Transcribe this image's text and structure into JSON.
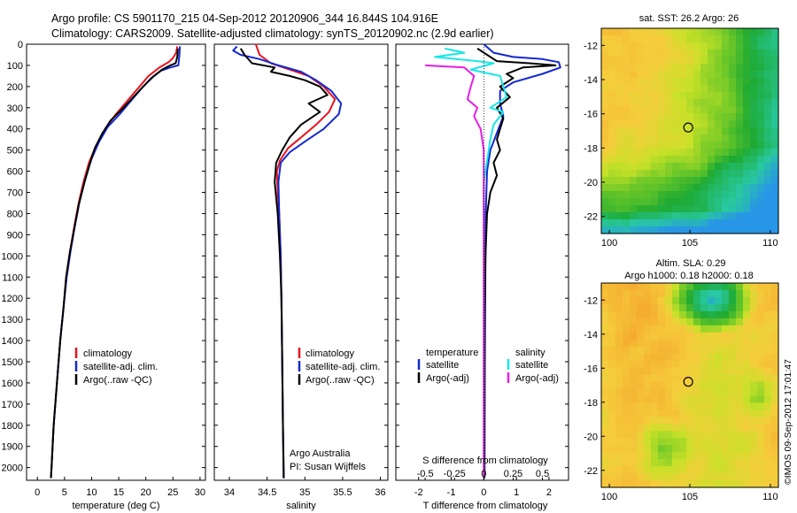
{
  "header": {
    "line1": "Argo profile: CS 5901170_215 04-Sep-2012 20120906_344 16.844S 104.916E",
    "line2": "Climatology: CARS2009. Satellite-adjusted climatology: synTS_20120902.nc (2.9d earlier)"
  },
  "colors": {
    "red": "#e8141e",
    "blue": "#1428d2",
    "black": "#000000",
    "cyan": "#19e6e6",
    "magenta": "#e61ee6"
  },
  "chart_data": [
    {
      "type": "line",
      "panel": "temperature",
      "xlabel": "temperature (deg C)",
      "ylabel": "",
      "xlim": [
        -2,
        31
      ],
      "ylim": [
        2060,
        0
      ],
      "xticks": [
        0,
        5,
        10,
        15,
        20,
        25,
        30
      ],
      "yticks": [
        0,
        100,
        200,
        300,
        400,
        500,
        600,
        700,
        800,
        900,
        1000,
        1100,
        1200,
        1300,
        1400,
        1500,
        1600,
        1700,
        1800,
        1900,
        2000
      ],
      "legend": [
        "climatology",
        "satellite-adj. clim.",
        "Argo(..raw -QC)"
      ],
      "series": [
        {
          "name": "climatology",
          "color": "red",
          "points": [
            [
              25.8,
              10
            ],
            [
              25.6,
              40
            ],
            [
              25.0,
              65
            ],
            [
              24.2,
              85
            ],
            [
              22.5,
              110
            ],
            [
              20.5,
              150
            ],
            [
              18.5,
              210
            ],
            [
              16.5,
              270
            ],
            [
              14.5,
              330
            ],
            [
              12.5,
              400
            ],
            [
              10.8,
              480
            ],
            [
              9.5,
              560
            ],
            [
              8.5,
              650
            ],
            [
              7.6,
              750
            ],
            [
              6.8,
              860
            ],
            [
              6.0,
              980
            ],
            [
              5.3,
              1100
            ],
            [
              4.8,
              1250
            ],
            [
              4.2,
              1400
            ],
            [
              3.6,
              1600
            ],
            [
              3.0,
              1800
            ],
            [
              2.6,
              2000
            ],
            [
              2.5,
              2050
            ]
          ]
        },
        {
          "name": "satellite-adj. clim.",
          "color": "blue",
          "points": [
            [
              26.3,
              10
            ],
            [
              26.2,
              50
            ],
            [
              26.0,
              100
            ],
            [
              24.5,
              110
            ],
            [
              22.8,
              125
            ],
            [
              21.0,
              160
            ],
            [
              19.0,
              215
            ],
            [
              17.0,
              275
            ],
            [
              15.2,
              330
            ],
            [
              13.0,
              390
            ],
            [
              11.4,
              460
            ],
            [
              10.0,
              540
            ],
            [
              8.8,
              640
            ],
            [
              7.8,
              740
            ],
            [
              6.9,
              860
            ],
            [
              6.1,
              980
            ],
            [
              5.4,
              1100
            ],
            [
              4.8,
              1250
            ],
            [
              4.2,
              1400
            ],
            [
              3.6,
              1600
            ],
            [
              3.0,
              1800
            ],
            [
              2.6,
              2000
            ],
            [
              2.5,
              2050
            ]
          ]
        },
        {
          "name": "Argo(..raw -QC)",
          "color": "black",
          "points": [
            [
              25.9,
              20
            ],
            [
              25.8,
              60
            ],
            [
              25.5,
              90
            ],
            [
              24.5,
              100
            ],
            [
              23.0,
              120
            ],
            [
              21.5,
              150
            ],
            [
              19.5,
              200
            ],
            [
              17.5,
              255
            ],
            [
              15.5,
              310
            ],
            [
              13.5,
              360
            ],
            [
              12.0,
              420
            ],
            [
              10.6,
              490
            ],
            [
              9.6,
              570
            ],
            [
              8.6,
              660
            ],
            [
              7.6,
              760
            ],
            [
              6.8,
              870
            ],
            [
              6.0,
              980
            ],
            [
              5.3,
              1100
            ],
            [
              4.8,
              1250
            ],
            [
              4.2,
              1400
            ],
            [
              3.6,
              1600
            ],
            [
              3.0,
              1800
            ],
            [
              2.6,
              2000
            ],
            [
              2.5,
              2050
            ]
          ]
        }
      ]
    },
    {
      "type": "line",
      "panel": "salinity",
      "xlabel": "salinity",
      "xlim": [
        33.8,
        36.1
      ],
      "ylim": [
        2060,
        0
      ],
      "xticks": [
        34,
        34.5,
        35,
        35.5,
        36
      ],
      "legend": [
        "climatology",
        "satellite-adj. clim.",
        "Argo(..raw -QC)"
      ],
      "annotation": [
        "Argo Australia",
        "PI: Susan Wijffels"
      ],
      "series": [
        {
          "name": "climatology",
          "color": "red",
          "points": [
            [
              34.35,
              0
            ],
            [
              34.4,
              50
            ],
            [
              34.55,
              90
            ],
            [
              34.8,
              120
            ],
            [
              35.05,
              150
            ],
            [
              35.25,
              200
            ],
            [
              35.4,
              260
            ],
            [
              35.32,
              320
            ],
            [
              35.15,
              380
            ],
            [
              34.95,
              440
            ],
            [
              34.78,
              490
            ],
            [
              34.67,
              550
            ],
            [
              34.63,
              600
            ],
            [
              34.64,
              700
            ],
            [
              34.66,
              800
            ],
            [
              34.68,
              1000
            ],
            [
              34.69,
              1200
            ],
            [
              34.7,
              1500
            ],
            [
              34.71,
              1800
            ],
            [
              34.72,
              2050
            ]
          ]
        },
        {
          "name": "satellite-adj. clim.",
          "color": "blue",
          "points": [
            [
              34.1,
              10
            ],
            [
              34.05,
              30
            ],
            [
              34.15,
              50
            ],
            [
              34.4,
              70
            ],
            [
              34.65,
              100
            ],
            [
              34.95,
              130
            ],
            [
              35.15,
              170
            ],
            [
              35.35,
              220
            ],
            [
              35.48,
              280
            ],
            [
              35.45,
              330
            ],
            [
              35.25,
              400
            ],
            [
              35.0,
              460
            ],
            [
              34.8,
              510
            ],
            [
              34.68,
              560
            ],
            [
              34.65,
              650
            ],
            [
              34.66,
              800
            ],
            [
              34.68,
              1000
            ],
            [
              34.69,
              1200
            ],
            [
              34.7,
              1500
            ],
            [
              34.71,
              1800
            ],
            [
              34.72,
              2050
            ]
          ]
        },
        {
          "name": "Argo(..raw -QC)",
          "color": "black",
          "points": [
            [
              34.15,
              20
            ],
            [
              34.2,
              50
            ],
            [
              34.3,
              90
            ],
            [
              34.6,
              110
            ],
            [
              34.55,
              130
            ],
            [
              34.8,
              150
            ],
            [
              35.0,
              170
            ],
            [
              35.2,
              200
            ],
            [
              35.3,
              240
            ],
            [
              35.05,
              280
            ],
            [
              35.2,
              320
            ],
            [
              34.95,
              380
            ],
            [
              34.8,
              440
            ],
            [
              34.7,
              500
            ],
            [
              34.62,
              560
            ],
            [
              34.6,
              650
            ],
            [
              34.64,
              800
            ],
            [
              34.67,
              1000
            ],
            [
              34.69,
              1200
            ],
            [
              34.7,
              1500
            ],
            [
              34.71,
              1800
            ],
            [
              34.72,
              2050
            ]
          ]
        }
      ]
    },
    {
      "type": "line",
      "panel": "differences",
      "xlabel": "T difference from climatology",
      "x2label": "S difference from climatology",
      "xlim": [
        -2.7,
        2.6
      ],
      "ylim": [
        2060,
        0
      ],
      "xticks": [
        -2,
        -1,
        0,
        1,
        2
      ],
      "s_ticks": [
        [
          -1.8,
          "-0.5"
        ],
        [
          -0.9,
          "-0.25"
        ],
        [
          0,
          "0"
        ],
        [
          0.9,
          "0.25"
        ],
        [
          1.8,
          "0.5"
        ]
      ],
      "legend_t_title": "temperature",
      "legend_s_title": "salinity",
      "legend_t": [
        "satellite",
        "Argo(-adj)"
      ],
      "legend_s": [
        "satellite",
        "Argo(-adj)"
      ],
      "series": [
        {
          "name": "T satellite",
          "color": "blue",
          "points": [
            [
              0.0,
              0
            ],
            [
              0.3,
              40
            ],
            [
              0.9,
              60
            ],
            [
              1.8,
              70
            ],
            [
              2.3,
              85
            ],
            [
              2.35,
              110
            ],
            [
              1.8,
              140
            ],
            [
              0.9,
              180
            ],
            [
              0.5,
              220
            ],
            [
              0.5,
              280
            ],
            [
              0.6,
              340
            ],
            [
              0.4,
              420
            ],
            [
              0.2,
              500
            ],
            [
              0.1,
              600
            ],
            [
              0.06,
              800
            ],
            [
              0.05,
              1000
            ],
            [
              0.04,
              1300
            ],
            [
              0.03,
              1600
            ],
            [
              0.02,
              2050
            ]
          ]
        },
        {
          "name": "T Argo(-adj)",
          "color": "black",
          "points": [
            [
              -0.2,
              20
            ],
            [
              0.4,
              80
            ],
            [
              1.4,
              90
            ],
            [
              2.2,
              100
            ],
            [
              1.2,
              110
            ],
            [
              0.7,
              140
            ],
            [
              0.9,
              160
            ],
            [
              0.5,
              200
            ],
            [
              0.8,
              250
            ],
            [
              0.4,
              300
            ],
            [
              0.6,
              350
            ],
            [
              0.5,
              400
            ],
            [
              0.4,
              450
            ],
            [
              0.5,
              500
            ],
            [
              0.3,
              560
            ],
            [
              0.4,
              620
            ],
            [
              0.2,
              700
            ],
            [
              0.1,
              800
            ],
            [
              0.05,
              1000
            ],
            [
              0.03,
              1300
            ],
            [
              0.02,
              2050
            ]
          ]
        },
        {
          "name": "S satellite",
          "color": "cyan",
          "points": [
            [
              -1.2,
              20
            ],
            [
              -0.6,
              40
            ],
            [
              -1.5,
              60
            ],
            [
              -0.2,
              80
            ],
            [
              0.3,
              90
            ],
            [
              -0.4,
              120
            ],
            [
              0.5,
              150
            ],
            [
              0.7,
              250
            ],
            [
              0.2,
              300
            ],
            [
              0.6,
              320
            ],
            [
              0.3,
              380
            ],
            [
              0.2,
              450
            ],
            [
              0.1,
              550
            ],
            [
              0.0,
              650
            ],
            [
              0.0,
              800
            ],
            [
              0.0,
              1000
            ],
            [
              0.0,
              1500
            ],
            [
              0.0,
              2050
            ]
          ]
        },
        {
          "name": "S Argo(-adj)",
          "color": "magenta",
          "points": [
            [
              -1.8,
              100
            ],
            [
              -0.6,
              110
            ],
            [
              -0.3,
              150
            ],
            [
              -0.4,
              200
            ],
            [
              -0.5,
              260
            ],
            [
              -0.2,
              300
            ],
            [
              -0.3,
              340
            ],
            [
              -0.1,
              400
            ],
            [
              0.0,
              500
            ],
            [
              0.0,
              700
            ],
            [
              0.0,
              1000
            ],
            [
              0.0,
              1500
            ],
            [
              0.0,
              2050
            ]
          ]
        }
      ]
    },
    {
      "type": "heatmap",
      "panel": "sst-map",
      "title": "sat. SST: 26.2  Argo: 26",
      "xlim": [
        99.5,
        110.5
      ],
      "ylim": [
        -23,
        -11
      ],
      "xticks": [
        100,
        105,
        110
      ],
      "yticks": [
        -12,
        -14,
        -16,
        -18,
        -20,
        -22
      ],
      "marker": [
        104.9,
        -16.8
      ]
    },
    {
      "type": "heatmap",
      "panel": "sla-map",
      "title_line1": "Altim. SLA: 0.29",
      "title_line2": "Argo h1000: 0.18 h2000: 0.18",
      "xlim": [
        99.5,
        110.5
      ],
      "ylim": [
        -23,
        -11
      ],
      "xticks": [
        100,
        105,
        110
      ],
      "yticks": [
        -12,
        -14,
        -16,
        -18,
        -20,
        -22
      ],
      "marker": [
        104.9,
        -16.8
      ]
    }
  ],
  "footer": {
    "stamp": "©IMOS 09-Sep-2012 17:01:47"
  }
}
